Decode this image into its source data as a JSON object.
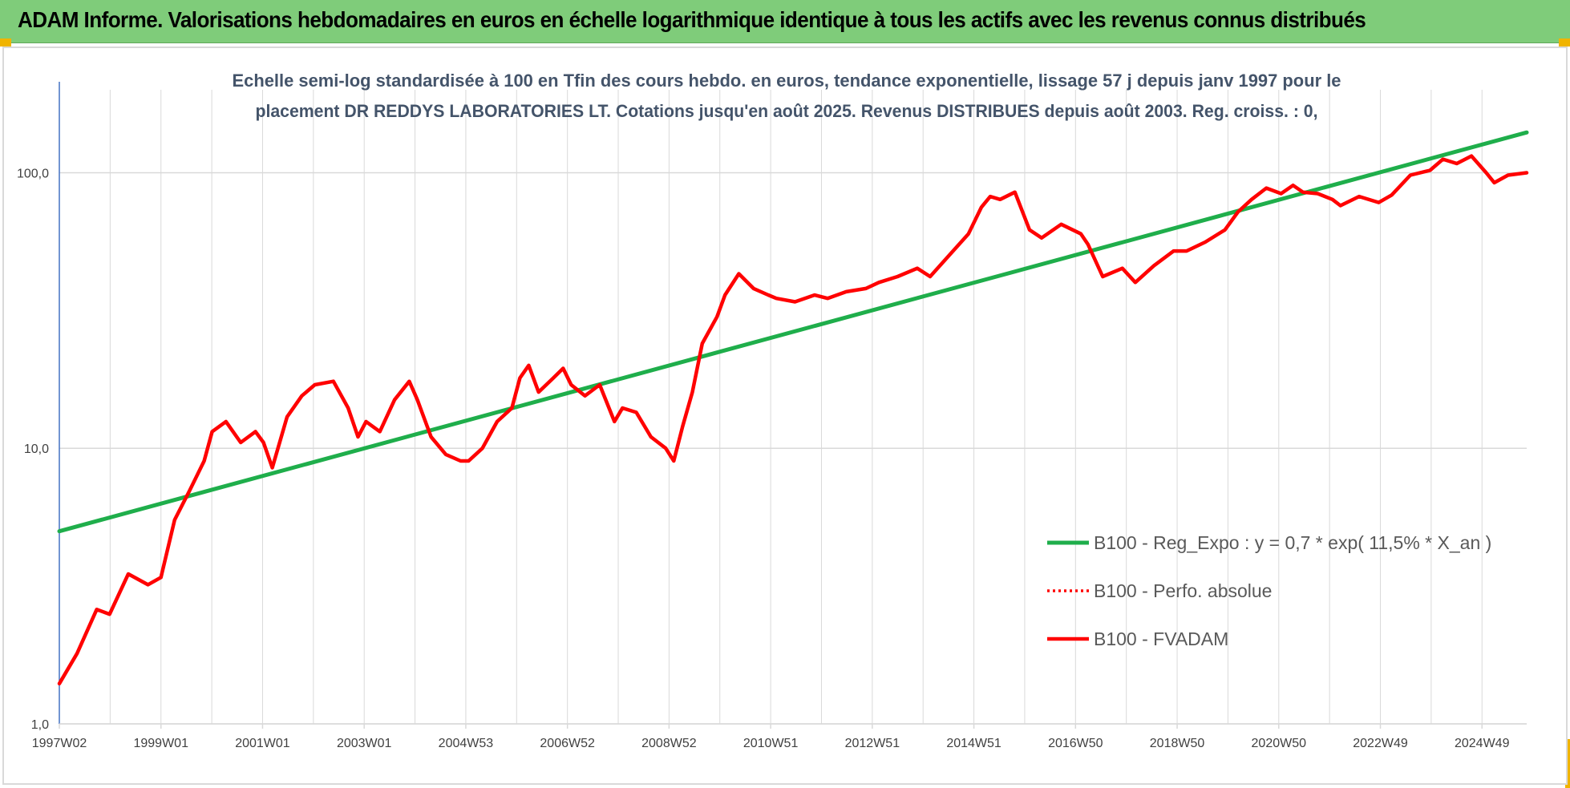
{
  "banner": {
    "title": "ADAM Informe. Valorisations hebdomadaires en euros en échelle logarithmique identique à tous les actifs avec les revenus connus distribués"
  },
  "colors": {
    "banner_bg": "#7fcc7a",
    "corner_accent": "#f0b400",
    "trend_line": "#1fae4b",
    "fvadam_line": "#ff0000",
    "perfo_line": "#ff0000",
    "grid": "#d9d9d9",
    "axis_text": "#404040",
    "title_text": "#44546a"
  },
  "chart_data": {
    "type": "line",
    "title_lines": [
      "Echelle semi-log standardisée à 100 en Tfin des cours hebdo. en euros, tendance exponentielle, lissage 57 j depuis janv 1997 pour le",
      "placement DR REDDYS LABORATORIES  LT. Cotations jusqu'en août 2025.  Revenus DISTRIBUES depuis août 2003.  Reg. croiss. : 0,"
    ],
    "y_scale": "log",
    "ylim": [
      1,
      200
    ],
    "y_ticks": [
      {
        "value": 1,
        "label": "1,0"
      },
      {
        "value": 10,
        "label": "10,0"
      },
      {
        "value": 100,
        "label": "100,0"
      }
    ],
    "x_tick_labels": [
      "1997W02",
      "1999W01",
      "2001W01",
      "2003W01",
      "2004W53",
      "2006W52",
      "2008W52",
      "2010W51",
      "2012W51",
      "2014W51",
      "2016W50",
      "2018W50",
      "2020W50",
      "2022W49",
      "2024W49"
    ],
    "grid": true,
    "legend_position": "right-bottom",
    "legend": [
      {
        "label": "B100 - Reg_Expo : y = 0,7 * exp( 11,5% *  X_an )",
        "style": "solid-green"
      },
      {
        "label": "B100 - Perfo. absolue",
        "style": "dotted-red"
      },
      {
        "label": "B100 - FVADAM",
        "style": "solid-red"
      }
    ],
    "series": [
      {
        "name": "B100 - Reg_Expo : y = 0,7 * exp( 11,5% *  X_an )",
        "x": [
          "1997W02",
          "2025W34"
        ],
        "values": [
          5.0,
          140
        ]
      },
      {
        "name": "B100 - FVADAM",
        "x": [
          "1997W02",
          "1997W20",
          "1997W40",
          "1998W01",
          "1998W20",
          "1998W40",
          "1999W01",
          "1999W15",
          "1999W30",
          "1999W45",
          "2000W01",
          "2000W15",
          "2000W30",
          "2000W45",
          "2001W01",
          "2001W10",
          "2001W25",
          "2001W40",
          "2002W01",
          "2002W20",
          "2002W35",
          "2002W45",
          "2003W01",
          "2003W15",
          "2003W30",
          "2003W45",
          "2004W01",
          "2004W15",
          "2004W30",
          "2004W45",
          "2005W01",
          "2005W15",
          "2005W30",
          "2005W45",
          "2006W01",
          "2006W10",
          "2006W20",
          "2006W35",
          "2006W45",
          "2007W01",
          "2007W15",
          "2007W30",
          "2007W45",
          "2008W01",
          "2008W15",
          "2008W30",
          "2008W45",
          "2009W01",
          "2009W10",
          "2009W20",
          "2009W30",
          "2009W45",
          "2010W01",
          "2010W15",
          "2010W30",
          "2010W45",
          "2011W01",
          "2011W20",
          "2011W40",
          "2012W01",
          "2012W20",
          "2012W40",
          "2013W01",
          "2013W20",
          "2013W40",
          "2014W01",
          "2014W20",
          "2014W40",
          "2015W01",
          "2015W10",
          "2015W20",
          "2015W35",
          "2015W50",
          "2016W10",
          "2016W30",
          "2016W50",
          "2017W05",
          "2017W20",
          "2017W40",
          "2018W01",
          "2018W20",
          "2018W40",
          "2019W01",
          "2019W20",
          "2019W40",
          "2020W01",
          "2020W15",
          "2020W30",
          "2020W45",
          "2021W05",
          "2021W15",
          "2021W30",
          "2021W45",
          "2022W01",
          "2022W20",
          "2022W40",
          "2023W01",
          "2023W20",
          "2023W40",
          "2024W01",
          "2024W15",
          "2024W30",
          "2024W45",
          "2025W01",
          "2025W15",
          "2025W34"
        ],
        "values": [
          1.4,
          1.8,
          2.6,
          2.5,
          3.5,
          3.2,
          3.4,
          5.5,
          7.0,
          9.0,
          11.5,
          12.5,
          10.5,
          11.5,
          10.5,
          8.5,
          13.0,
          15.5,
          17.0,
          17.5,
          14.0,
          11.0,
          12.5,
          11.5,
          15.0,
          17.5,
          15.0,
          11.0,
          9.5,
          9.0,
          9.0,
          10.0,
          12.5,
          14.0,
          18.0,
          20.0,
          16.0,
          18.0,
          19.5,
          17.0,
          15.5,
          17.0,
          12.5,
          14.0,
          13.5,
          11.0,
          10.0,
          9.0,
          12.0,
          16.0,
          24.0,
          30.0,
          36.0,
          43.0,
          38.0,
          36.0,
          35.0,
          34.0,
          36.0,
          35.0,
          37.0,
          38.0,
          40.0,
          42.0,
          45.0,
          42.0,
          50.0,
          60.0,
          75.0,
          82.0,
          80.0,
          85.0,
          62.0,
          58.0,
          65.0,
          60.0,
          55.0,
          42.0,
          45.0,
          40.0,
          46.0,
          52.0,
          52.0,
          56.0,
          62.0,
          72.0,
          80.0,
          88.0,
          84.0,
          90.0,
          85.0,
          84.0,
          80.0,
          76.0,
          82.0,
          78.0,
          83.0,
          98.0,
          102.0,
          112.0,
          108.0,
          115.0,
          100.0,
          92.0,
          98.0,
          100.0
        ]
      }
    ]
  }
}
